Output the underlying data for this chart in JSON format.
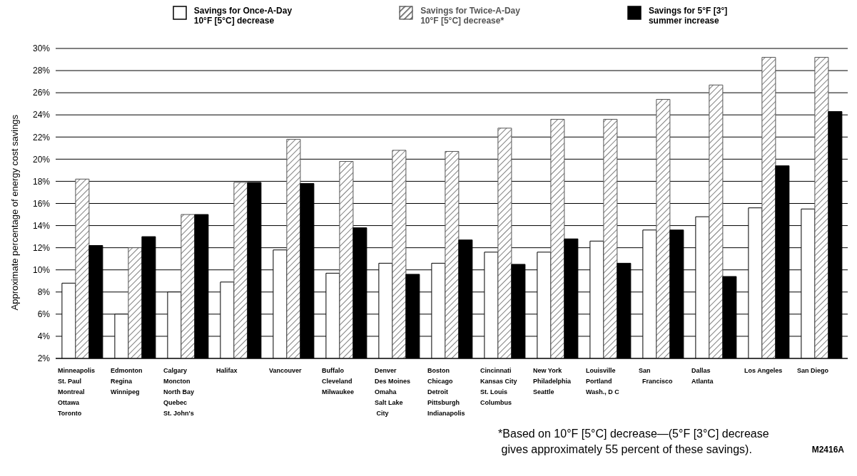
{
  "chart_data": {
    "type": "bar",
    "ylabel": "Approximate percentage of energy cost savings",
    "categories": [
      "Minneapolis\nSt. Paul\nMontreal\nOttawa\nToronto",
      "Edmonton\nRegina\nWinnipeg",
      "Calgary\nMoncton\nNorth Bay\nQuebec\nSt. John's",
      "Halifax",
      "Vancouver",
      "Buffalo\nCleveland\nMilwaukee",
      "Denver\nDes Moines\nOmaha\nSalt Lake\n City",
      "Boston\nChicago\nDetroit\nPittsburgh\nIndianapolis",
      "Cincinnati\nKansas City\nSt. Louis\nColumbus",
      "New York\nPhiladelphia\nSeattle",
      "Louisville\nPortland\nWash., D C",
      "San\n  Francisco",
      "Dallas\nAtlanta",
      "Los Angeles",
      "San Diego"
    ],
    "series": [
      {
        "name": "Savings for Once-A-Day\n10°F [5°C] decrease",
        "color": "#ffffff",
        "values": [
          8.8,
          6,
          8,
          8.9,
          11.8,
          9.7,
          10.6,
          10.6,
          11.6,
          11.6,
          12.6,
          13.6,
          14.8,
          15.6,
          15.5
        ]
      },
      {
        "name": "Savings for Twice-A-Day\n10°F [5°C] decrease*",
        "color": "#555555",
        "values": [
          18.2,
          12,
          15,
          17.9,
          21.8,
          19.8,
          20.8,
          20.7,
          22.8,
          23.6,
          23.6,
          25.4,
          26.7,
          29.2,
          29.2
        ]
      },
      {
        "name": "Savings for 5°F [3°]\nsummer increase",
        "color": "#000000",
        "values": [
          12.2,
          13,
          15,
          17.9,
          17.8,
          13.8,
          9.6,
          12.7,
          10.5,
          12.8,
          10.6,
          13.6,
          9.4,
          19.4,
          24.3
        ]
      }
    ],
    "ylim": [
      2,
      30
    ],
    "yticks": [
      {
        "value": 2,
        "label": "2%"
      },
      {
        "value": 4,
        "label": "4%"
      },
      {
        "value": 6,
        "label": "6%"
      },
      {
        "value": 8,
        "label": "8%"
      },
      {
        "value": 10,
        "label": "10%"
      },
      {
        "value": 12,
        "label": "12%"
      },
      {
        "value": 14,
        "label": "14%"
      },
      {
        "value": 16,
        "label": "16%"
      },
      {
        "value": 18,
        "label": "18%"
      },
      {
        "value": 20,
        "label": "20%"
      },
      {
        "value": 22,
        "label": "22%"
      },
      {
        "value": 24,
        "label": "24%"
      },
      {
        "value": 26,
        "label": "26%"
      },
      {
        "value": 28,
        "label": "28%"
      },
      {
        "value": 30,
        "label": "30%"
      }
    ],
    "grid": "y",
    "legend": "top",
    "annotations": [
      "*Based on 10°F [5°C] decrease—(5°F [3°C] decrease\n gives approximately 55 percent of these savings).",
      "M2416A"
    ]
  }
}
